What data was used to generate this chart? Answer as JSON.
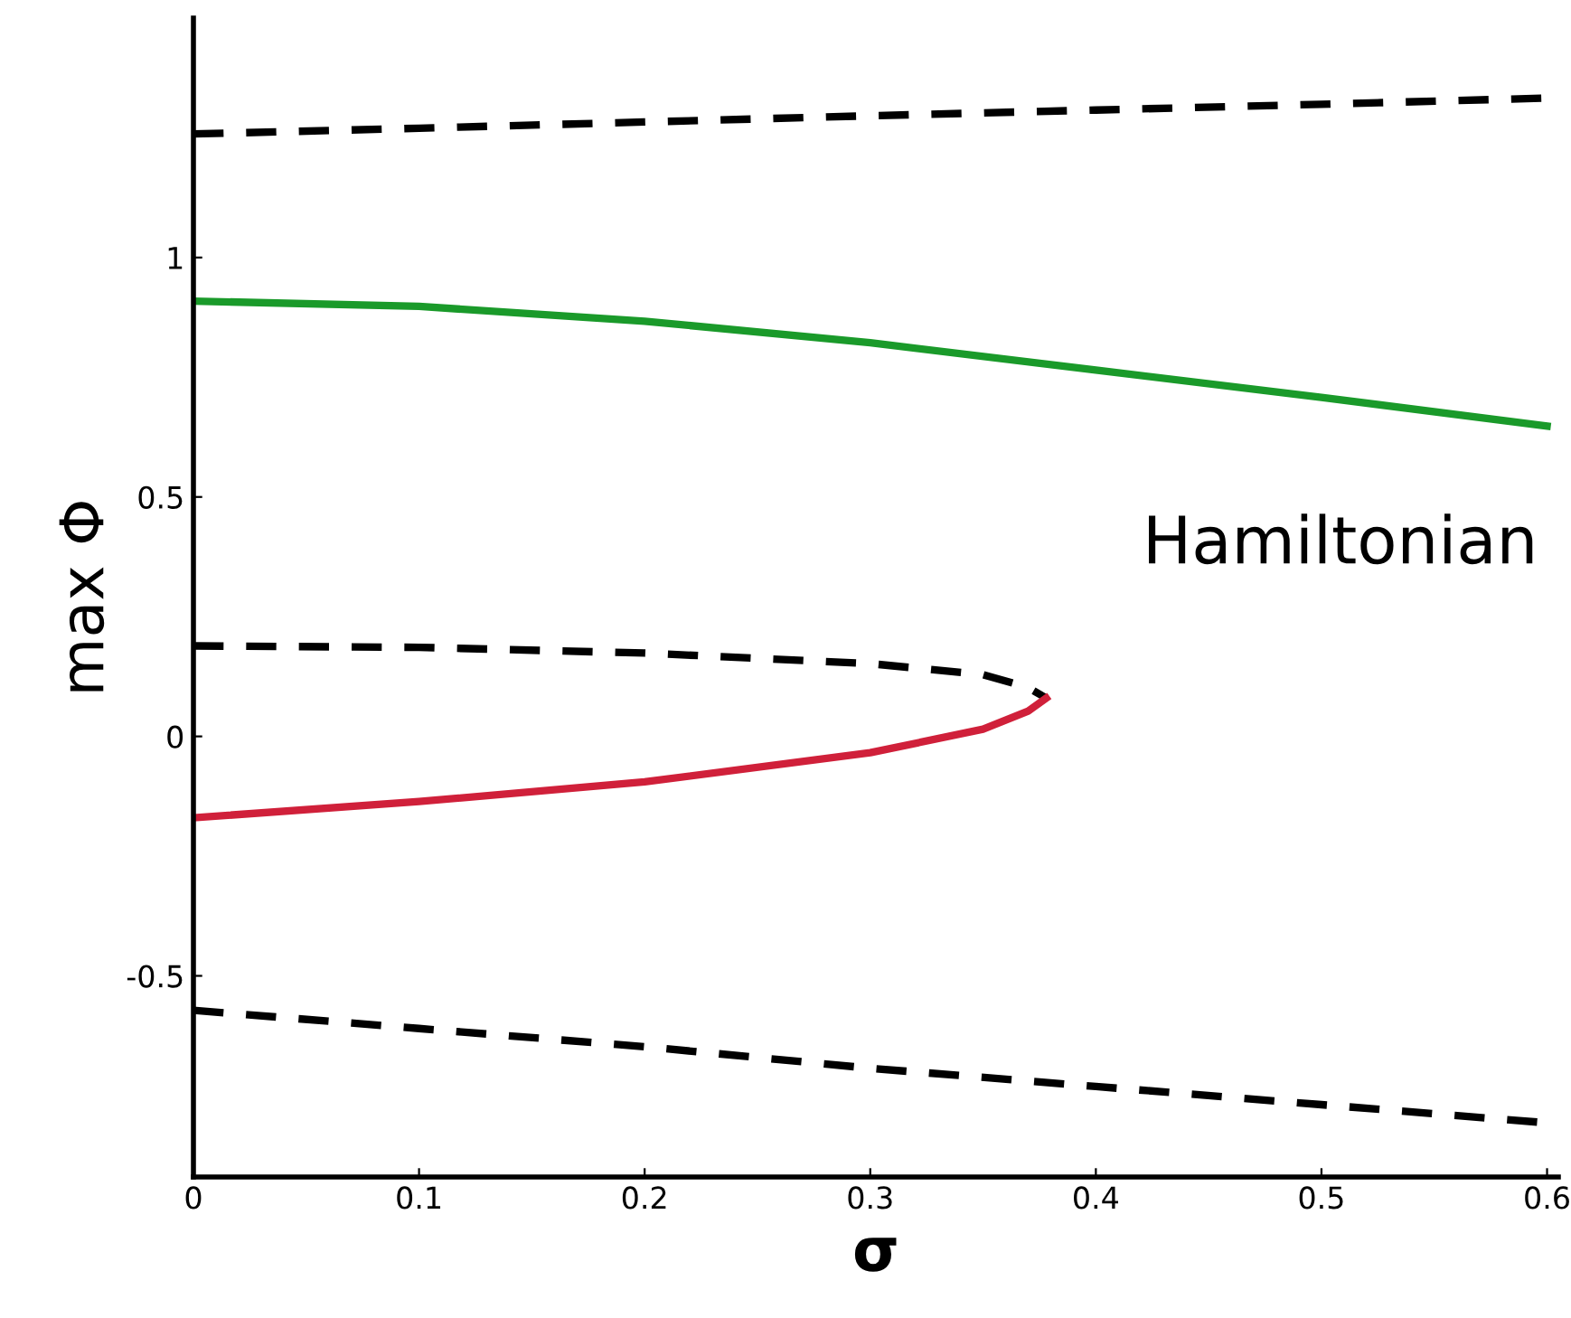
{
  "chart_data": {
    "type": "line",
    "xlabel": "σ",
    "ylabel": "max Φ",
    "xlim": [
      0,
      0.605
    ],
    "ylim": [
      -0.92,
      1.5
    ],
    "xticks": [
      0,
      0.1,
      0.2,
      0.3,
      0.4,
      0.5,
      0.6
    ],
    "yticks": [
      {
        "value": -0.5,
        "label": "-0.5"
      },
      0,
      0.5,
      1
    ],
    "grid": false,
    "annotations": [
      "Hamiltonian"
    ],
    "series": [
      {
        "color": "#000000",
        "line_style": "dashed",
        "x": [
          0,
          0.1,
          0.2,
          0.3,
          0.4,
          0.5,
          0.6
        ],
        "values": [
          1.258,
          1.27,
          1.283,
          1.296,
          1.308,
          1.32,
          1.333
        ]
      },
      {
        "color": "#1a9a2a",
        "line_style": "solid",
        "x": [
          0,
          0.1,
          0.2,
          0.3,
          0.4,
          0.5,
          0.6
        ],
        "values": [
          0.909,
          0.898,
          0.867,
          0.822,
          0.765,
          0.708,
          0.648
        ]
      },
      {
        "color": "#000000",
        "line_style": "dashed",
        "x": [
          0,
          0.1,
          0.2,
          0.3,
          0.35,
          0.37,
          0.378
        ],
        "values": [
          0.189,
          0.186,
          0.174,
          0.152,
          0.129,
          0.102,
          0.08
        ]
      },
      {
        "color": "#d0203a",
        "line_style": "solid",
        "x": [
          0,
          0.1,
          0.2,
          0.3,
          0.35,
          0.37,
          0.378
        ],
        "values": [
          -0.17,
          -0.136,
          -0.095,
          -0.034,
          0.015,
          0.053,
          0.08
        ]
      },
      {
        "color": "#000000",
        "line_style": "dashed",
        "x": [
          0,
          0.1,
          0.2,
          0.3,
          0.4,
          0.5,
          0.6
        ],
        "values": [
          -0.572,
          -0.61,
          -0.648,
          -0.693,
          -0.731,
          -0.769,
          -0.807
        ]
      }
    ]
  }
}
